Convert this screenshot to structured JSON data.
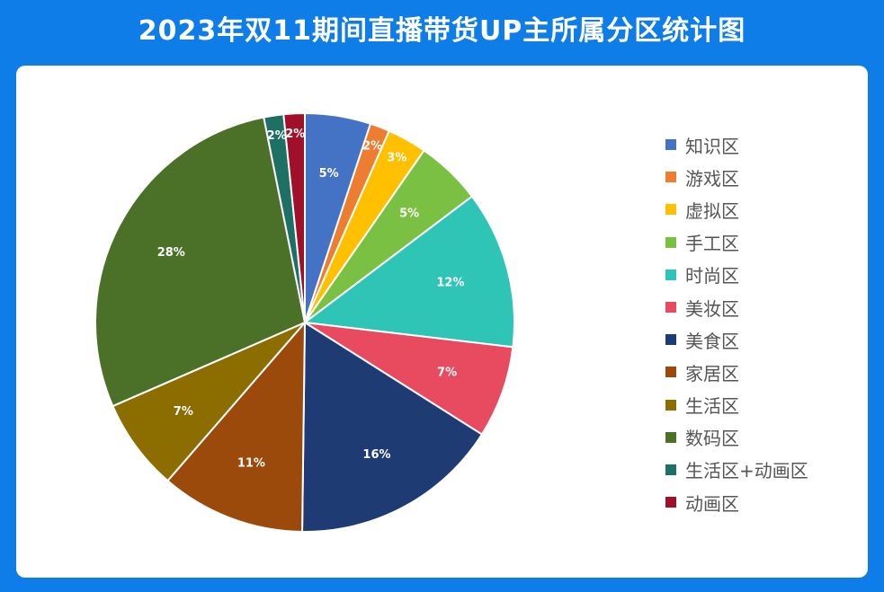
{
  "title": "2023年双11期间直播带货UP主所属分区统计图",
  "chart_data": {
    "type": "pie",
    "title": "2023年双11期间直播带货UP主所属分区统计图",
    "start_angle_deg": 0,
    "direction": "clockwise",
    "slices": [
      {
        "label": "知识区",
        "value": 5,
        "display": "5%",
        "color": "#4472c4"
      },
      {
        "label": "游戏区",
        "value": 1.5,
        "display": "2%",
        "color": "#ed7d31"
      },
      {
        "label": "虚拟区",
        "value": 3,
        "display": "3%",
        "color": "#ffc000"
      },
      {
        "label": "手工区",
        "value": 5,
        "display": "5%",
        "color": "#7ac143"
      },
      {
        "label": "时尚区",
        "value": 12,
        "display": "12%",
        "color": "#2ec4b6"
      },
      {
        "label": "美妆区",
        "value": 7,
        "display": "7%",
        "color": "#e84a5f"
      },
      {
        "label": "美食区",
        "value": 16,
        "display": "16%",
        "color": "#1f3b73"
      },
      {
        "label": "家居区",
        "value": 11,
        "display": "11%",
        "color": "#9c4a0c"
      },
      {
        "label": "生活区",
        "value": 7,
        "display": "7%",
        "color": "#8c6d00"
      },
      {
        "label": "数码区",
        "value": 28,
        "display": "28%",
        "color": "#4b7129"
      },
      {
        "label": "生活区+动画区",
        "value": 1.5,
        "display": "2%",
        "color": "#1e7064"
      },
      {
        "label": "动画区",
        "value": 1.6,
        "display": "2%",
        "color": "#a0102a"
      }
    ],
    "legend_position": "right"
  }
}
